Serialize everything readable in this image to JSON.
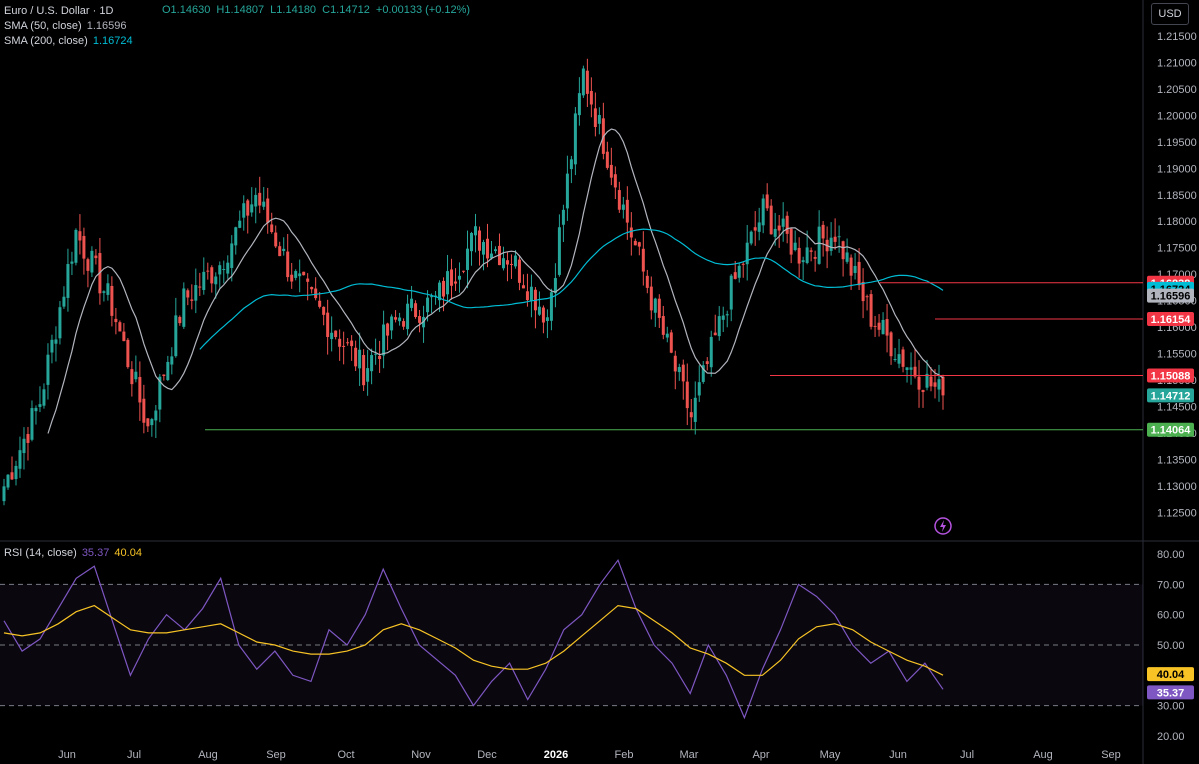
{
  "legend": {
    "symbol": "Euro / U.S. Dollar · 1D",
    "ohlc": {
      "o": "O1.14630",
      "h": "H1.14807",
      "l": "L1.14180",
      "c": "C1.14712",
      "chg": "+0.00133 (+0.12%)"
    },
    "sma50_label": "SMA (50, close)",
    "sma50_value": "1.16596",
    "sma200_label": "SMA (200, close)",
    "sma200_value": "1.16724"
  },
  "currency_button": "USD",
  "rsi": {
    "label": "RSI (14, close)",
    "value": "35.37",
    "ma_value": "40.04"
  },
  "colors": {
    "up": "#26a69a",
    "down": "#ef5350",
    "sma50": "#b2b5be",
    "sma200": "#00bcd4",
    "rsi": "#7e57c2",
    "rsi_ma": "#f7c325",
    "hline_red": "#f23645",
    "hline_green": "#4caf50"
  },
  "chart_data": [
    {
      "type": "candlestick",
      "title": "Euro / U.S. Dollar · 1D",
      "x_ticks": [
        "Jun",
        "Jul",
        "Aug",
        "Sep",
        "Oct",
        "Nov",
        "Dec",
        "2026",
        "Feb",
        "Mar",
        "Apr",
        "May",
        "Jun",
        "Jul",
        "Aug",
        "Sep"
      ],
      "y_ticks": [
        "1.12500",
        "1.13000",
        "1.13500",
        "1.14000",
        "1.14500",
        "1.15000",
        "1.15500",
        "1.16000",
        "1.16500",
        "1.17000",
        "1.17500",
        "1.18000",
        "1.18500",
        "1.19000",
        "1.19500",
        "1.20000",
        "1.20500",
        "1.21000",
        "1.21500"
      ],
      "ylim": [
        1.12,
        1.218
      ],
      "price_labels": [
        {
          "value": "1.16838",
          "color": "#f23645"
        },
        {
          "value": "1.16724",
          "color": "#00bcd4"
        },
        {
          "value": "1.16596",
          "color": "#b2b5be"
        },
        {
          "value": "1.16154",
          "color": "#f23645"
        },
        {
          "value": "1.15088",
          "color": "#f23645"
        },
        {
          "value": "1.14712",
          "color": "#26a69a"
        },
        {
          "value": "1.14064",
          "color": "#4caf50"
        }
      ],
      "horizontal_levels": [
        1.16838,
        1.16154,
        1.15088,
        1.14064
      ],
      "last_close": 1.14712,
      "close_path": [
        [
          "Jun",
          1.13
        ],
        [
          "Jun",
          1.146
        ],
        [
          "Jul",
          1.178
        ],
        [
          "Jul",
          1.164
        ],
        [
          "Aug",
          1.141
        ],
        [
          "Aug",
          1.165
        ],
        [
          "Sep",
          1.172
        ],
        [
          "Sep",
          1.185
        ],
        [
          "Oct",
          1.17
        ],
        [
          "Oct",
          1.161
        ],
        [
          "Nov",
          1.152
        ],
        [
          "Nov",
          1.162
        ],
        [
          "Dec",
          1.165
        ],
        [
          "Dec",
          1.177
        ],
        [
          "2026",
          1.173
        ],
        [
          "2026",
          1.162
        ],
        [
          "Feb",
          1.208
        ],
        [
          "Feb",
          1.185
        ],
        [
          "Mar",
          1.163
        ],
        [
          "Mar",
          1.143
        ],
        [
          "Apr",
          1.165
        ],
        [
          "Apr",
          1.182
        ],
        [
          "May",
          1.174
        ],
        [
          "May",
          1.178
        ],
        [
          "Jun",
          1.162
        ],
        [
          "Jun",
          1.153
        ],
        [
          "Jun",
          1.14712
        ]
      ]
    },
    {
      "type": "line",
      "title": "RSI (14, close)",
      "y_ticks": [
        "20.00",
        "30.00",
        "40.00",
        "50.00",
        "60.00",
        "70.00",
        "80.00"
      ],
      "ylim": [
        17,
        83
      ],
      "levels": [
        70,
        50,
        30
      ],
      "series": [
        {
          "name": "RSI",
          "values": [
            58,
            48,
            52,
            62,
            72,
            76,
            58,
            40,
            52,
            60,
            55,
            62,
            72,
            50,
            42,
            48,
            40,
            38,
            55,
            50,
            60,
            75,
            62,
            50,
            45,
            40,
            30,
            38,
            44,
            32,
            42,
            55,
            60,
            70,
            78,
            62,
            50,
            44,
            34,
            50,
            40,
            26,
            42,
            55,
            70,
            66,
            60,
            50,
            44,
            48,
            38,
            44,
            35.37
          ]
        },
        {
          "name": "RSI MA",
          "values": [
            54,
            53,
            54,
            57,
            61,
            63,
            59,
            55,
            54,
            54,
            55,
            56,
            57,
            54,
            51,
            50,
            48,
            47,
            47,
            48,
            50,
            55,
            57,
            55,
            52,
            49,
            45,
            43,
            42,
            42,
            44,
            48,
            53,
            58,
            63,
            62,
            58,
            54,
            49,
            47,
            44,
            40,
            40,
            45,
            52,
            56,
            57,
            55,
            51,
            48,
            45,
            43,
            40.04
          ]
        }
      ]
    }
  ]
}
